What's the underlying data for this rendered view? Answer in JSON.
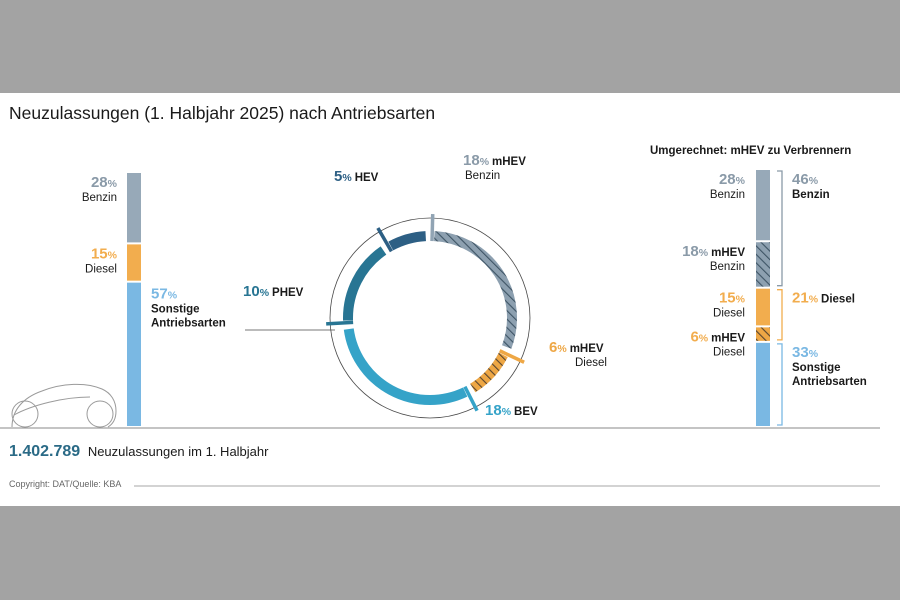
{
  "header": {
    "title": "Neuzulassungen (1. Halbjahr 2025) nach Antriebsarten",
    "right_title": "Umgerechnet: mHEV zu Verbrennern"
  },
  "footer": {
    "total_value": "1.402.789",
    "total_label": "Neuzulassungen im 1. Halbjahr",
    "copyright": "Copyright: DAT/Quelle: KBA"
  },
  "colors": {
    "benzin": "#97a9b8",
    "diesel": "#f2ad4e",
    "sonstige": "#7ab8e3",
    "hev": "#2d5f84",
    "phev": "#287593",
    "bev": "#35a3c8",
    "mhev_benzin": "#91a4b4",
    "mhev_diesel": "#eea745",
    "dark_text": "#1a1a1a"
  },
  "chart_data": [
    {
      "type": "bar",
      "orientation": "stacked-vertical",
      "series": [
        {
          "name": "Benzin",
          "value": 28,
          "value_label": "28",
          "unit": "%",
          "label_lines": [
            "Benzin"
          ]
        },
        {
          "name": "Diesel",
          "value": 15,
          "value_label": "15",
          "unit": "%",
          "label_lines": [
            "Diesel"
          ]
        },
        {
          "name": "Sonstige Antriebsarten",
          "value": 57,
          "value_label": "57",
          "unit": "%",
          "label_lines": [
            "Sonstige",
            "Antriebsarten"
          ]
        }
      ]
    },
    {
      "type": "pie",
      "style": "ring",
      "segments": [
        {
          "name": "mHEV Benzin",
          "value": 18,
          "value_label": "18",
          "unit": "%",
          "label_lines": [
            "mHEV",
            "Benzin"
          ],
          "hatched": true
        },
        {
          "name": "mHEV Diesel",
          "value": 6,
          "value_label": "6",
          "unit": "%",
          "label_lines": [
            "mHEV",
            "Diesel"
          ],
          "hatched": true
        },
        {
          "name": "BEV",
          "value": 18,
          "value_label": "18",
          "unit": "%",
          "label_lines": [
            "BEV"
          ],
          "hatched": false
        },
        {
          "name": "PHEV",
          "value": 10,
          "value_label": "10",
          "unit": "%",
          "label_lines": [
            "PHEV"
          ],
          "hatched": false
        },
        {
          "name": "HEV",
          "value": 5,
          "value_label": "5",
          "unit": "%",
          "label_lines": [
            "HEV"
          ],
          "hatched": false
        }
      ]
    },
    {
      "type": "bar",
      "orientation": "stacked-vertical",
      "title": "Umgerechnet: mHEV zu Verbrennern",
      "series": [
        {
          "name": "Benzin",
          "value": 28,
          "value_label": "28",
          "unit": "%",
          "label_lines": [
            "Benzin"
          ],
          "hatched": false
        },
        {
          "name": "mHEV Benzin",
          "value": 18,
          "value_label": "18",
          "unit": "%",
          "label_lines": [
            "mHEV",
            "Benzin"
          ],
          "hatched": true
        },
        {
          "name": "Diesel",
          "value": 15,
          "value_label": "15",
          "unit": "%",
          "label_lines": [
            "Diesel"
          ],
          "hatched": false
        },
        {
          "name": "mHEV Diesel",
          "value": 6,
          "value_label": "6",
          "unit": "%",
          "label_lines": [
            "mHEV",
            "Diesel"
          ],
          "hatched": true
        },
        {
          "name": "Sonstige Antriebsarten",
          "value": 33,
          "value_label": "33",
          "unit": "%",
          "label_lines": [
            "Sonstige",
            "Antriebsarten"
          ],
          "hatched": false
        }
      ],
      "groups": [
        {
          "name": "Benzin",
          "value_label": "46",
          "unit": "%",
          "label_lines": [
            "Benzin"
          ],
          "members": [
            0,
            1
          ]
        },
        {
          "name": "Diesel",
          "value_label": "21",
          "unit": "%",
          "label_lines": [
            "Diesel"
          ],
          "members": [
            2,
            3
          ]
        },
        {
          "name": "Sonstige Antriebsarten",
          "value_label": "33",
          "unit": "%",
          "label_lines": [
            "Sonstige",
            "Antriebsarten"
          ],
          "members": [
            4
          ]
        }
      ]
    }
  ]
}
